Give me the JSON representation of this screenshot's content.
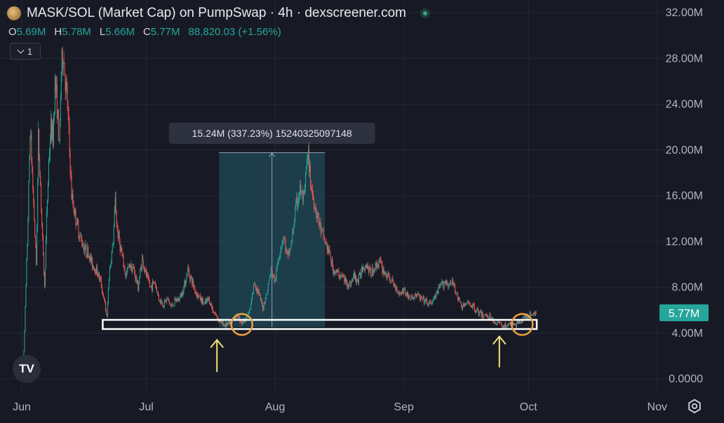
{
  "header": {
    "title": "MASK/SOL (Market Cap) on PumpSwap · 4h · dexscreener.com",
    "coin_icon": "token-avatar-icon",
    "live_icon": "live-status-dot-icon"
  },
  "ohlc": {
    "o_label": "O",
    "o_value": "5.69M",
    "h_label": "H",
    "h_value": "5.78M",
    "l_label": "L",
    "l_value": "5.66M",
    "c_label": "C",
    "c_value": "5.77M",
    "change": "88,820.03 (+1.56%)"
  },
  "indicator_toggle": {
    "label": "1"
  },
  "branding": {
    "logo_text": "TV"
  },
  "colors": {
    "background": "#171a24",
    "up": "#26a69a",
    "down": "#ef5350",
    "measure_fill": "#1f4a55",
    "support_box": "#ffffff",
    "highlight_circle": "#f0a040",
    "arrow": "#f5e27a",
    "price_badge": "#26a69a"
  },
  "chart_data": {
    "type": "candlestick",
    "y_axis": {
      "min": 0,
      "max": 32000000,
      "tick_labels": [
        "32.00M",
        "28.00M",
        "24.00M",
        "20.00M",
        "16.00M",
        "12.00M",
        "8.00M",
        "4.00M",
        "0.0000"
      ],
      "tick_values": [
        32000000,
        28000000,
        24000000,
        20000000,
        16000000,
        12000000,
        8000000,
        4000000,
        0
      ]
    },
    "x_axis": {
      "tick_labels": [
        "Jun",
        "Jul",
        "Aug",
        "Sep",
        "Oct",
        "Nov"
      ],
      "tick_days": [
        0,
        30,
        61,
        92,
        122,
        153
      ]
    },
    "grid": true,
    "last_price_label": "5.77M",
    "last_price_value": 5770000,
    "measure": {
      "label": "15.24M (337.23%) 15240325097148",
      "start_day": 47.5,
      "end_day": 73,
      "from_value": 4520000,
      "to_value": 19760000
    },
    "support_zone": {
      "start_day": 19.5,
      "end_day": 124,
      "low": 4350000,
      "high": 5150000
    },
    "highlights": [
      {
        "day": 53,
        "value": 4750000
      },
      {
        "day": 120.5,
        "value": 4750000
      }
    ],
    "arrows": [
      {
        "day": 47,
        "tip_value": 3400000,
        "tail_value": 600000
      },
      {
        "day": 115,
        "tip_value": 3700000,
        "tail_value": 1000000
      }
    ],
    "trend_points": [
      [
        0,
        0.3
      ],
      [
        0.5,
        2.5
      ],
      [
        1,
        8
      ],
      [
        1.5,
        14
      ],
      [
        2,
        22
      ],
      [
        2.5,
        18
      ],
      [
        3,
        14
      ],
      [
        3.5,
        10
      ],
      [
        4,
        21
      ],
      [
        4.5,
        17
      ],
      [
        5,
        12
      ],
      [
        5.5,
        8
      ],
      [
        6,
        14
      ],
      [
        6.5,
        19
      ],
      [
        7,
        22
      ],
      [
        7.5,
        21
      ],
      [
        8,
        26
      ],
      [
        8.5,
        24
      ],
      [
        9,
        20
      ],
      [
        9.5,
        27
      ],
      [
        10,
        28.5
      ],
      [
        10.5,
        26
      ],
      [
        11,
        24
      ],
      [
        11.5,
        20
      ],
      [
        12,
        16
      ],
      [
        13,
        14
      ],
      [
        14,
        12.5
      ],
      [
        15,
        11.5
      ],
      [
        16,
        11
      ],
      [
        17,
        10
      ],
      [
        18,
        9.5
      ],
      [
        19,
        8.5
      ],
      [
        20,
        6.5
      ],
      [
        20.5,
        5.3
      ],
      [
        21,
        9
      ],
      [
        22,
        12
      ],
      [
        22.5,
        15.5
      ],
      [
        23,
        13
      ],
      [
        24,
        11
      ],
      [
        25,
        9
      ],
      [
        26,
        10
      ],
      [
        27,
        9.5
      ],
      [
        28,
        8
      ],
      [
        29,
        10.5
      ],
      [
        30,
        9
      ],
      [
        31,
        8
      ],
      [
        32,
        8.5
      ],
      [
        33,
        7
      ],
      [
        34,
        6.5
      ],
      [
        35,
        7
      ],
      [
        36,
        6.3
      ],
      [
        37,
        6.8
      ],
      [
        38,
        7
      ],
      [
        39,
        8
      ],
      [
        40,
        9.5
      ],
      [
        41,
        8.5
      ],
      [
        42,
        7.5
      ],
      [
        43,
        7
      ],
      [
        44,
        6.5
      ],
      [
        45,
        7
      ],
      [
        46,
        6
      ],
      [
        47,
        5.4
      ],
      [
        48,
        4.9
      ],
      [
        49,
        4.7
      ],
      [
        50,
        4.8
      ],
      [
        51,
        5.3
      ],
      [
        52,
        5.5
      ],
      [
        53,
        4.9
      ],
      [
        54,
        5.3
      ],
      [
        55,
        6
      ],
      [
        56,
        8.5
      ],
      [
        57,
        7.5
      ],
      [
        58,
        6.2
      ],
      [
        59,
        7.5
      ],
      [
        60,
        9.5
      ],
      [
        61,
        8.5
      ],
      [
        62,
        11
      ],
      [
        63,
        12.5
      ],
      [
        64,
        10.5
      ],
      [
        65,
        12
      ],
      [
        66,
        15
      ],
      [
        67,
        16.5
      ],
      [
        68,
        15.5
      ],
      [
        68.5,
        18.5
      ],
      [
        69,
        19.2
      ],
      [
        69.5,
        17.5
      ],
      [
        70,
        16
      ],
      [
        71,
        14.5
      ],
      [
        72,
        13
      ],
      [
        73,
        12
      ],
      [
        74,
        11
      ],
      [
        75,
        9.5
      ],
      [
        76,
        9.2
      ],
      [
        77,
        9
      ],
      [
        78,
        8.5
      ],
      [
        79,
        8.2
      ],
      [
        80,
        9
      ],
      [
        81,
        8.5
      ],
      [
        82,
        9.8
      ],
      [
        83,
        10
      ],
      [
        84,
        9.2
      ],
      [
        85,
        9.7
      ],
      [
        86,
        10.3
      ],
      [
        87,
        9.5
      ],
      [
        88,
        9
      ],
      [
        89,
        8.5
      ],
      [
        90,
        8
      ],
      [
        91,
        7.5
      ],
      [
        92,
        7.8
      ],
      [
        93,
        7.2
      ],
      [
        94,
        7
      ],
      [
        95,
        7.4
      ],
      [
        96,
        7
      ],
      [
        97,
        6.8
      ],
      [
        98,
        6.5
      ],
      [
        99,
        6.8
      ],
      [
        100,
        7.5
      ],
      [
        101,
        8.2
      ],
      [
        102,
        8.5
      ],
      [
        103,
        8.2
      ],
      [
        104,
        8.4
      ],
      [
        105,
        7
      ],
      [
        106,
        6.3
      ],
      [
        107,
        6.5
      ],
      [
        108,
        6.6
      ],
      [
        109,
        6.2
      ],
      [
        110,
        5.8
      ],
      [
        111,
        5.5
      ],
      [
        112,
        5.6
      ],
      [
        113,
        5.3
      ],
      [
        114,
        4.9
      ],
      [
        115,
        4.9
      ],
      [
        116,
        4.6
      ],
      [
        117,
        4.7
      ],
      [
        118,
        4.8
      ],
      [
        119,
        4.7
      ],
      [
        120,
        5.1
      ],
      [
        121,
        5.3
      ],
      [
        122,
        5.5
      ],
      [
        123,
        5.7
      ],
      [
        124,
        5.77
      ]
    ]
  }
}
